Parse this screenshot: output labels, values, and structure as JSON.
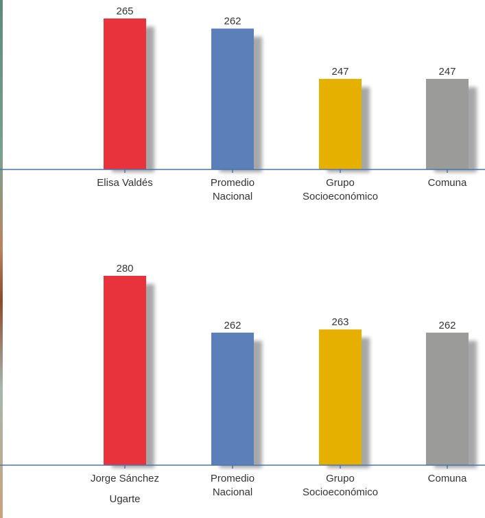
{
  "colors": {
    "student": "#e8323c",
    "national": "#5b7fb8",
    "socioeconomic": "#e6b000",
    "comuna": "#9b9b9a",
    "axis": "#4a74b0",
    "shadow": "#8a8a8a"
  },
  "chart_data": [
    {
      "type": "bar",
      "categories": [
        [
          "Elisa Valdés"
        ],
        [
          "Promedio",
          "Nacional"
        ],
        [
          "Grupo",
          "Socioeconómico"
        ],
        [
          "Comuna"
        ]
      ],
      "values": [
        265,
        262,
        247,
        247
      ],
      "value_labels": [
        "265",
        "262",
        "247",
        "247"
      ],
      "bar_colors": [
        "student",
        "national",
        "socioeconomic",
        "comuna"
      ]
    },
    {
      "type": "bar",
      "categories": [
        [
          "Jorge Sánchez",
          "Ugarte"
        ],
        [
          "Promedio",
          "Nacional"
        ],
        [
          "Grupo",
          "Socioeconómico"
        ],
        [
          "Comuna"
        ]
      ],
      "values": [
        280,
        262,
        263,
        262
      ],
      "value_labels": [
        "280",
        "262",
        "263",
        "262"
      ],
      "bar_colors": [
        "student",
        "national",
        "socioeconomic",
        "comuna"
      ]
    }
  ]
}
